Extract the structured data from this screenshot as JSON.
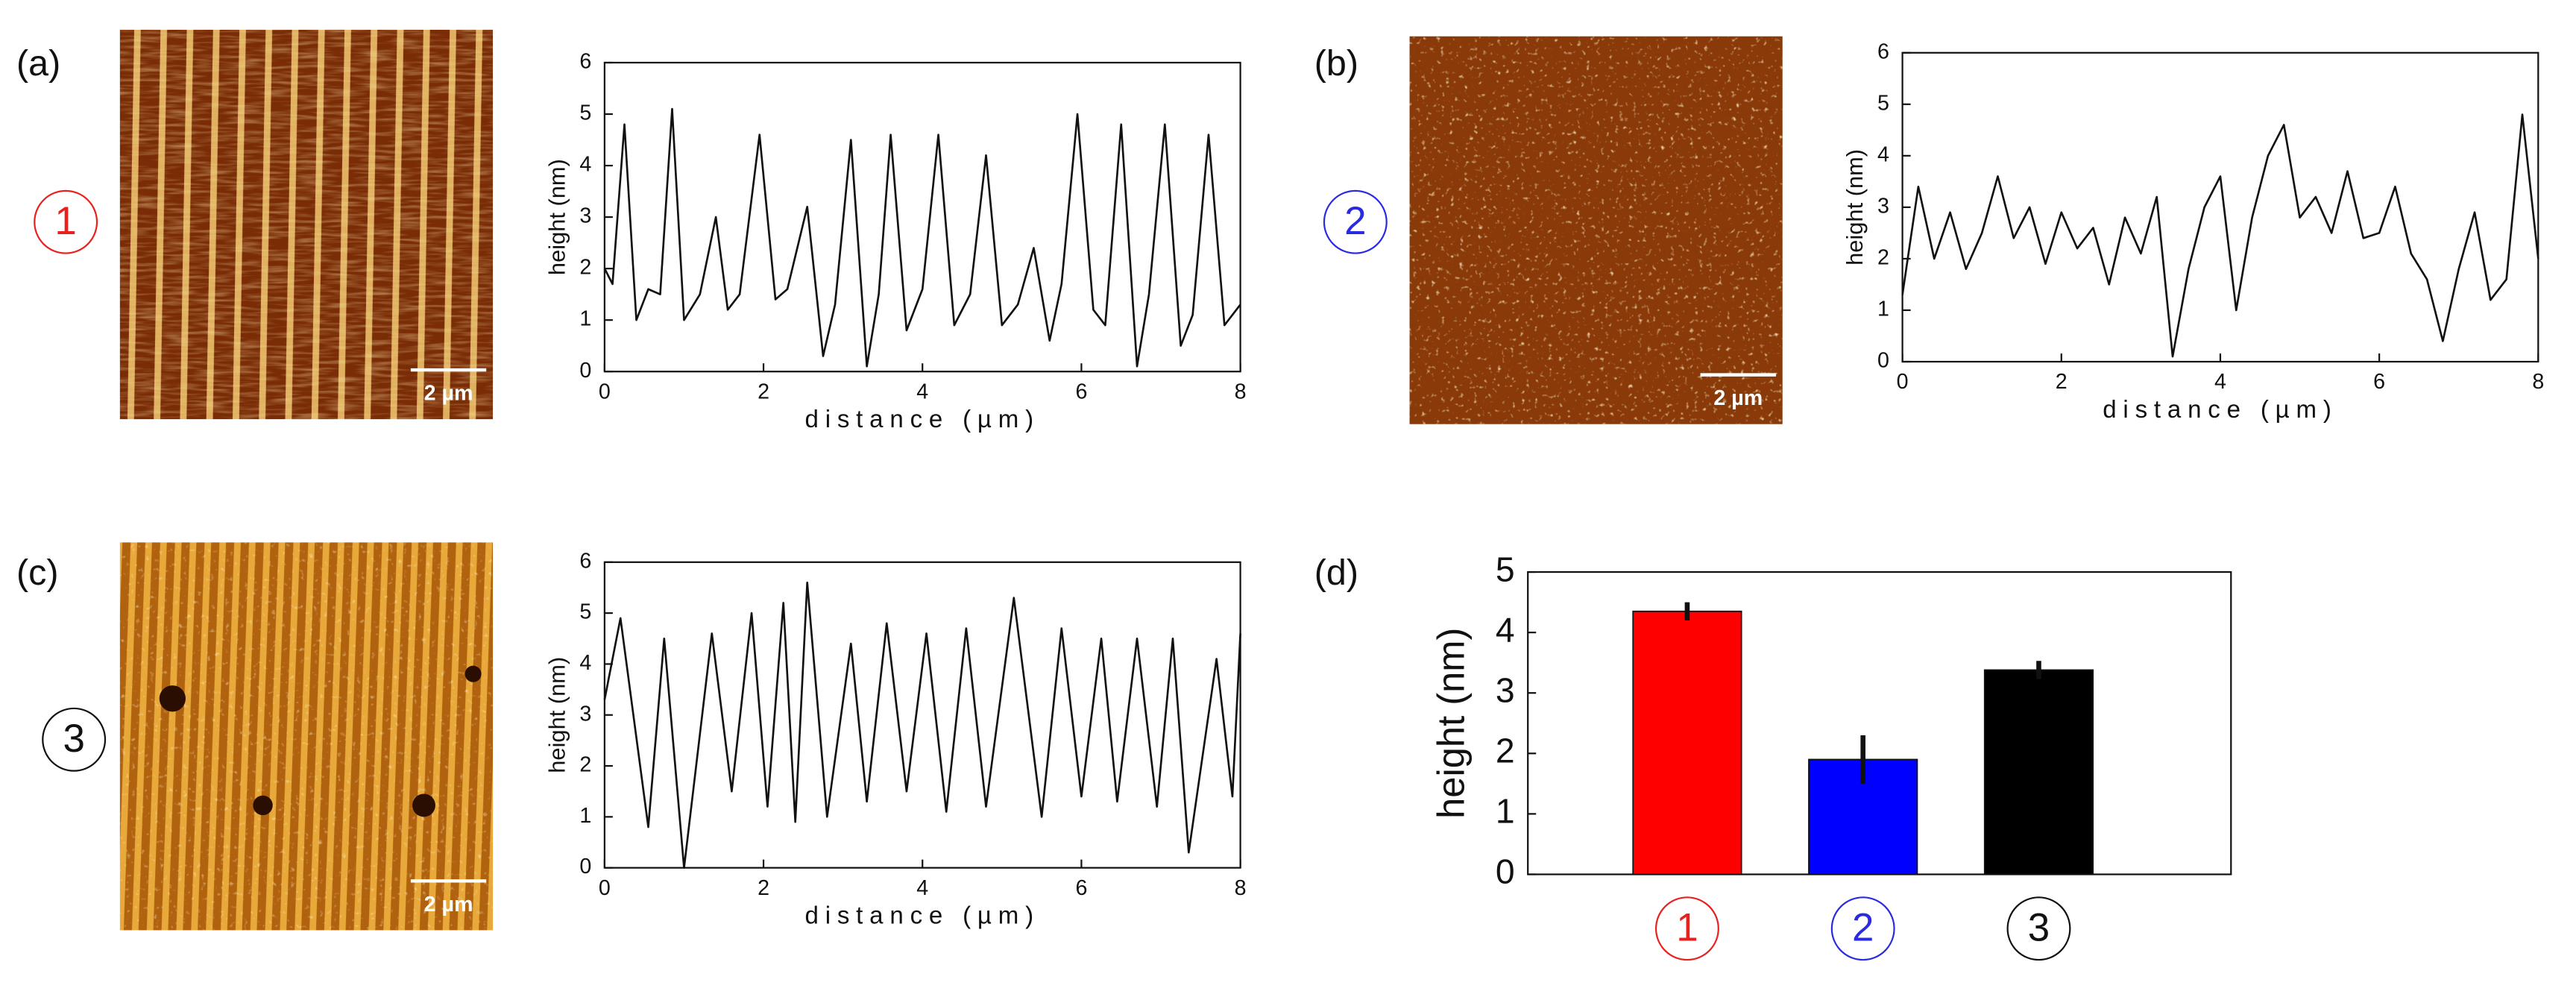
{
  "chart_data": [
    {
      "type": "line",
      "label": "(a)",
      "marker": "1",
      "marker_color": "#e8201e",
      "scale_bar": "2 µm",
      "xlabel": "distance (µm)",
      "ylabel": "height (nm)",
      "color": "#111111",
      "xlim": [
        0,
        8
      ],
      "ylim": [
        0,
        6
      ],
      "xticks": [
        0,
        2,
        4,
        6,
        8
      ],
      "yticks": [
        0,
        1,
        2,
        3,
        4,
        5,
        6
      ],
      "x": [
        0,
        0.1,
        0.25,
        0.4,
        0.55,
        0.7,
        0.85,
        1.0,
        1.2,
        1.4,
        1.55,
        1.7,
        1.95,
        2.15,
        2.3,
        2.55,
        2.75,
        2.9,
        3.1,
        3.3,
        3.45,
        3.6,
        3.8,
        4.0,
        4.2,
        4.4,
        4.6,
        4.8,
        5.0,
        5.2,
        5.4,
        5.6,
        5.75,
        5.95,
        6.15,
        6.3,
        6.5,
        6.7,
        6.85,
        7.05,
        7.25,
        7.4,
        7.6,
        7.8,
        8.0
      ],
      "values": [
        2.0,
        1.7,
        4.8,
        1.0,
        1.6,
        1.5,
        5.1,
        1.0,
        1.5,
        3.0,
        1.2,
        1.5,
        4.6,
        1.4,
        1.6,
        3.2,
        0.3,
        1.3,
        4.5,
        0.1,
        1.5,
        4.6,
        0.8,
        1.6,
        4.6,
        0.9,
        1.5,
        4.2,
        0.9,
        1.3,
        2.4,
        0.6,
        1.7,
        5.0,
        1.2,
        0.9,
        4.8,
        0.1,
        1.5,
        4.8,
        0.5,
        1.1,
        4.6,
        0.9,
        1.3
      ]
    },
    {
      "type": "line",
      "label": "(b)",
      "marker": "2",
      "marker_color": "#2a2ae0",
      "scale_bar": "2 µm",
      "xlabel": "distance (µm)",
      "ylabel": "height (nm)",
      "color": "#111111",
      "xlim": [
        0,
        8
      ],
      "ylim": [
        0,
        6
      ],
      "xticks": [
        0,
        2,
        4,
        6,
        8
      ],
      "yticks": [
        0,
        1,
        2,
        3,
        4,
        5,
        6
      ],
      "x": [
        0,
        0.2,
        0.4,
        0.6,
        0.8,
        1.0,
        1.2,
        1.4,
        1.6,
        1.8,
        2.0,
        2.2,
        2.4,
        2.6,
        2.8,
        3.0,
        3.2,
        3.4,
        3.6,
        3.8,
        4.0,
        4.2,
        4.4,
        4.6,
        4.8,
        5.0,
        5.2,
        5.4,
        5.6,
        5.8,
        6.0,
        6.2,
        6.4,
        6.6,
        6.8,
        7.0,
        7.2,
        7.4,
        7.6,
        7.8,
        8.0
      ],
      "values": [
        1.3,
        3.4,
        2.0,
        2.9,
        1.8,
        2.5,
        3.6,
        2.4,
        3.0,
        1.9,
        2.9,
        2.2,
        2.6,
        1.5,
        2.8,
        2.1,
        3.2,
        0.1,
        1.8,
        3.0,
        3.6,
        1.0,
        2.8,
        4.0,
        4.6,
        2.8,
        3.2,
        2.5,
        3.7,
        2.4,
        2.5,
        3.4,
        2.1,
        1.6,
        0.4,
        1.8,
        2.9,
        1.2,
        1.6,
        4.8,
        2.0
      ]
    },
    {
      "type": "line",
      "label": "(c)",
      "marker": "3",
      "marker_color": "#111111",
      "scale_bar": "2 µm",
      "xlabel": "distance (µm)",
      "ylabel": "height (nm)",
      "color": "#111111",
      "xlim": [
        0,
        8
      ],
      "ylim": [
        0,
        6
      ],
      "xticks": [
        0,
        2,
        4,
        6,
        8
      ],
      "yticks": [
        0,
        1,
        2,
        3,
        4,
        5,
        6
      ],
      "x": [
        0,
        0.2,
        0.55,
        0.75,
        1.0,
        1.35,
        1.6,
        1.85,
        2.05,
        2.25,
        2.4,
        2.55,
        2.8,
        3.1,
        3.3,
        3.55,
        3.8,
        4.05,
        4.3,
        4.55,
        4.8,
        5.15,
        5.5,
        5.75,
        6.0,
        6.25,
        6.45,
        6.7,
        6.95,
        7.15,
        7.35,
        7.7,
        7.9,
        8.0
      ],
      "values": [
        3.3,
        4.9,
        0.8,
        4.5,
        0,
        4.6,
        1.5,
        5.0,
        1.2,
        5.2,
        0.9,
        5.6,
        1.0,
        4.4,
        1.3,
        4.8,
        1.5,
        4.6,
        1.1,
        4.7,
        1.2,
        5.3,
        1.0,
        4.7,
        1.4,
        4.5,
        1.3,
        4.5,
        1.2,
        4.5,
        0.3,
        4.1,
        1.4,
        4.6
      ]
    },
    {
      "type": "bar",
      "label": "(d)",
      "ylabel": "height (nm)",
      "categories": [
        "1",
        "2",
        "3"
      ],
      "category_colors": [
        "#e8201e",
        "#2a2ae0",
        "#111111"
      ],
      "values": [
        4.35,
        1.9,
        3.38
      ],
      "errors": [
        0.15,
        0.4,
        0.15
      ],
      "colors": [
        "#ff0000",
        "#0000ff",
        "#000000"
      ],
      "ylim": [
        0,
        5
      ],
      "yticks": [
        0,
        1,
        2,
        3,
        4,
        5
      ]
    }
  ]
}
